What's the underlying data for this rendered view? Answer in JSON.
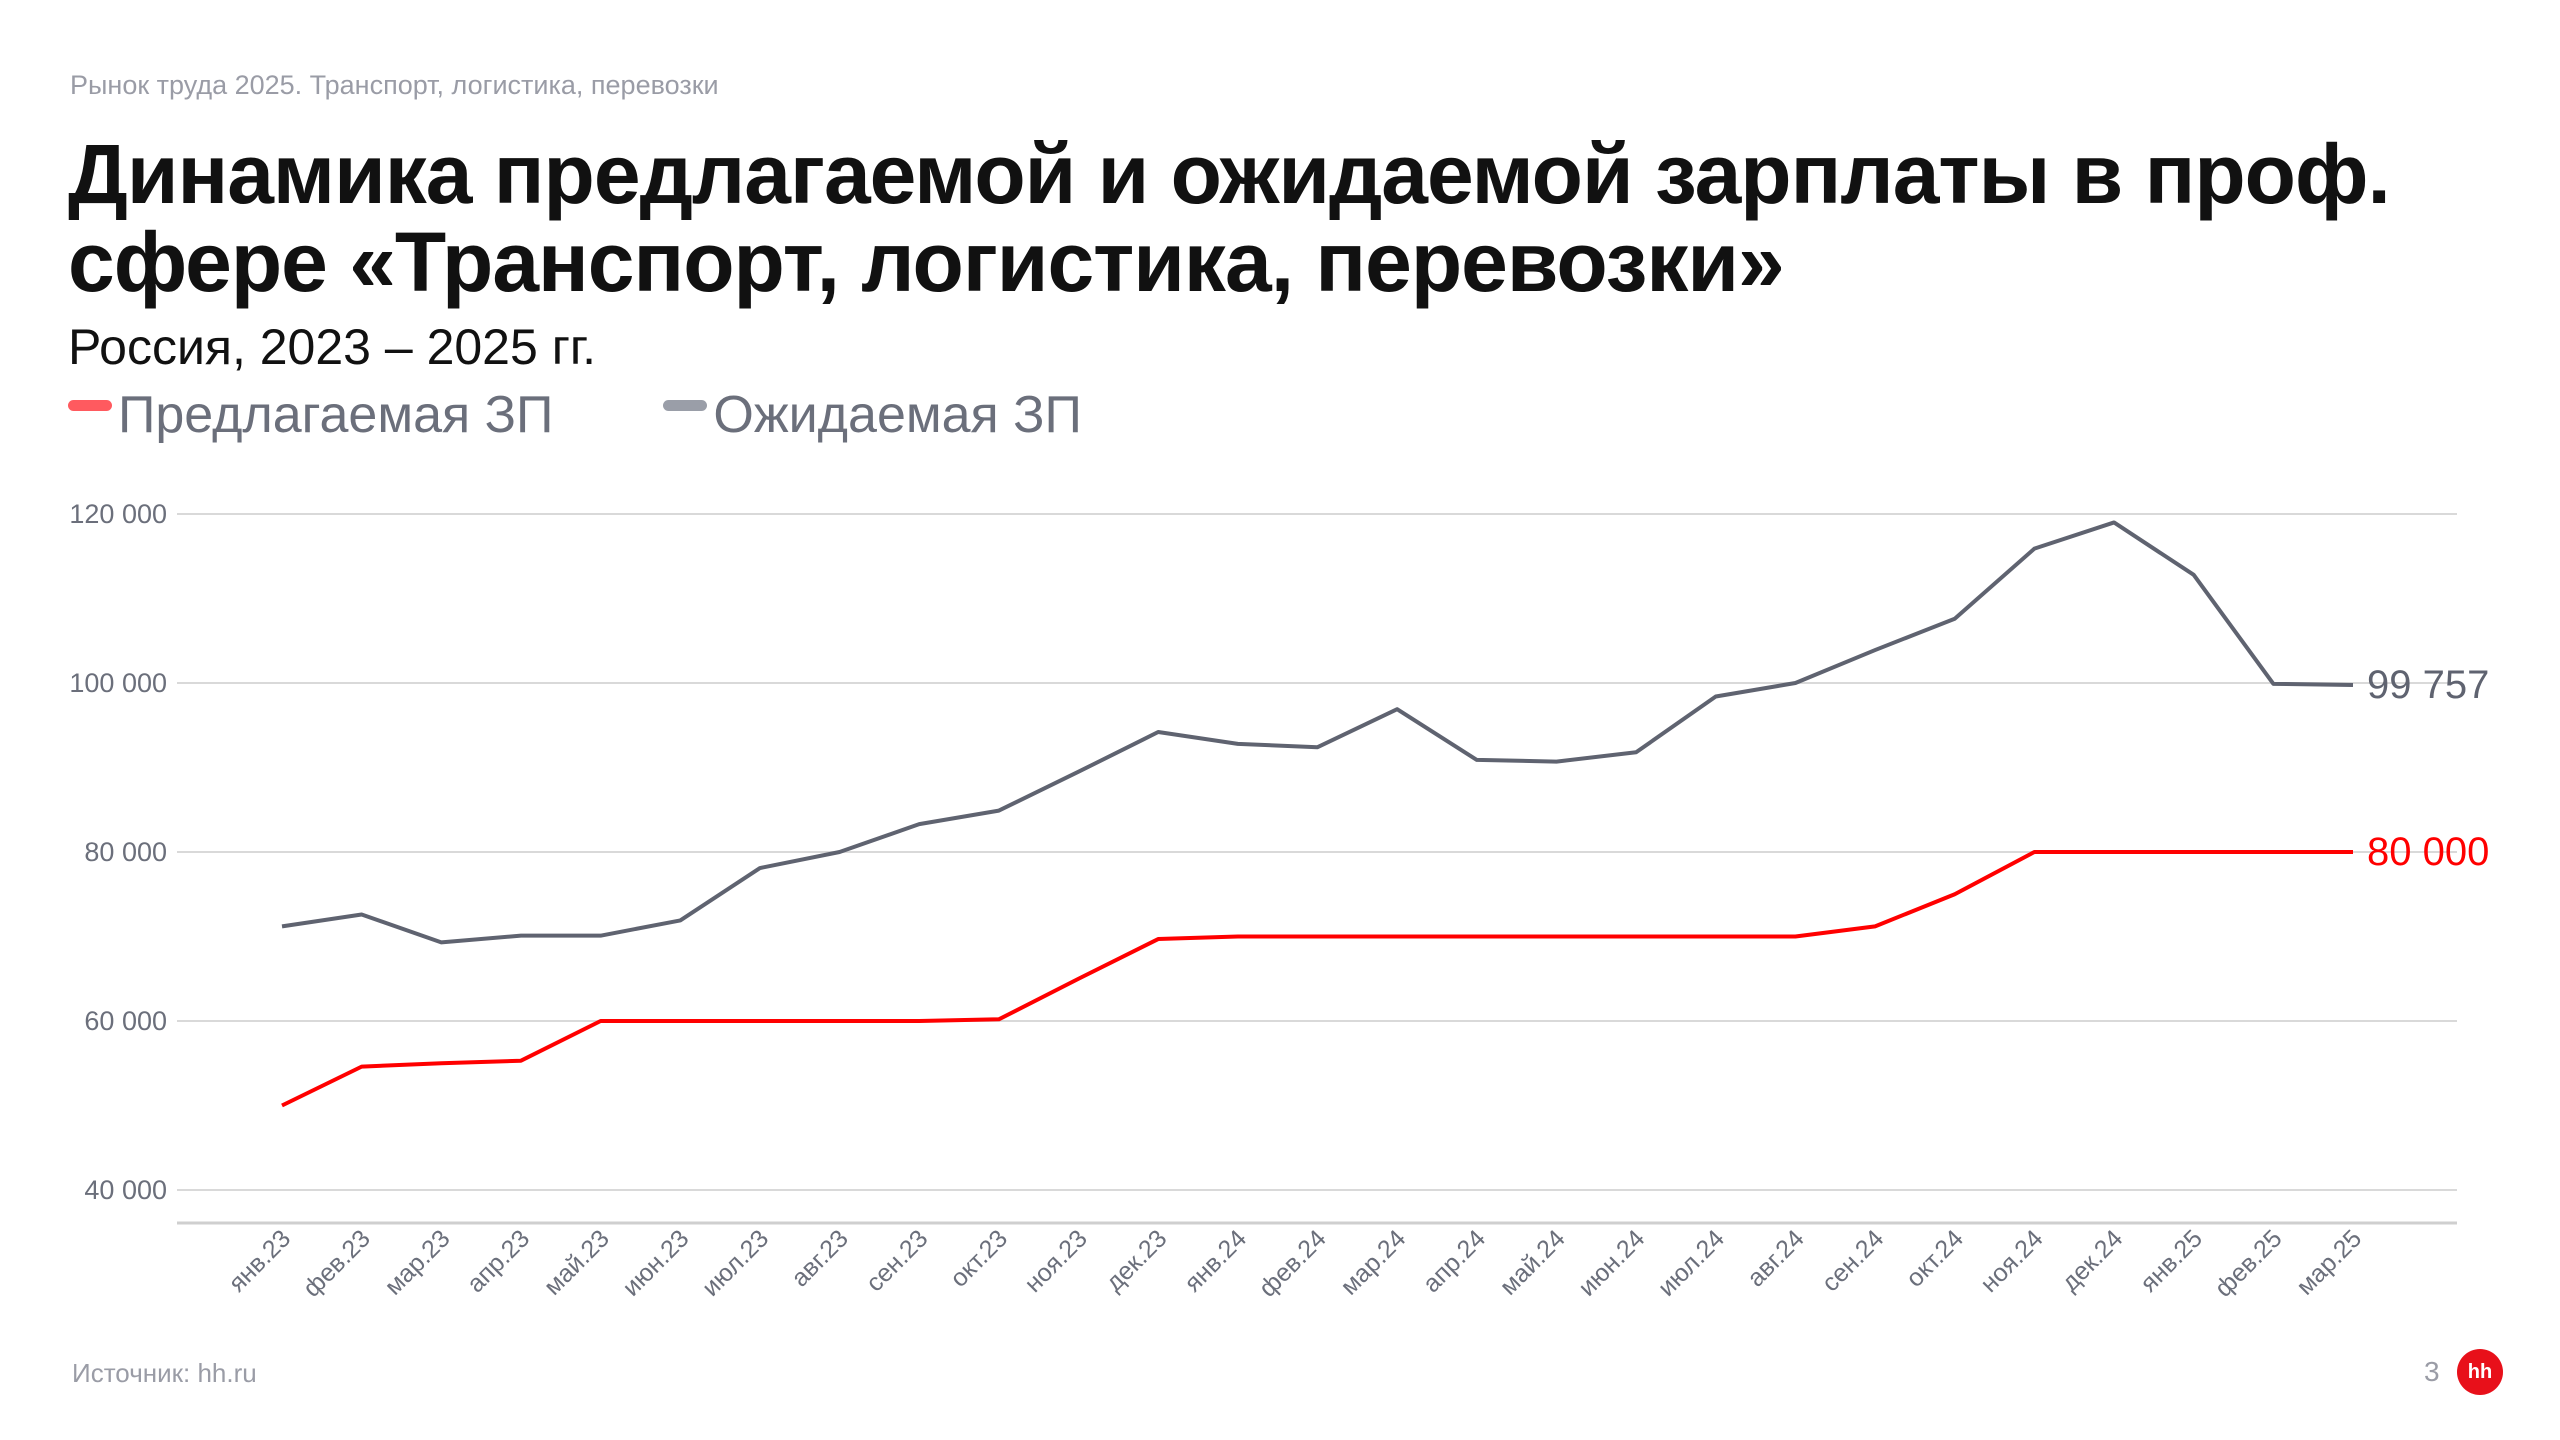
{
  "header": {
    "kicker": "Рынок труда 2025.  Транспорт, логистика, перевозки",
    "title": "Динамика предлагаемой и ожидаемой зарплаты в проф. сфере «Транспорт, логистика, перевозки»",
    "subtitle": "Россия, 2023 – 2025 гг."
  },
  "footer": {
    "source": "Источник: hh.ru",
    "page_number": "3",
    "logo_text": "hh"
  },
  "colors": {
    "offered": "#ff0000",
    "expected": "#5f6370",
    "grid": "#d9d9d9"
  },
  "chart_data": {
    "type": "line",
    "title": "Динамика предлагаемой и ожидаемой зарплаты в проф. сфере «Транспорт, логистика, перевозки»",
    "subtitle": "Россия, 2023 – 2025 гг.",
    "legend_position": "top-left",
    "grid": true,
    "ylim": [
      40000,
      120000
    ],
    "yticks": [
      {
        "value": 40000,
        "label": "40 000"
      },
      {
        "value": 60000,
        "label": "60 000"
      },
      {
        "value": 80000,
        "label": "80 000"
      },
      {
        "value": 100000,
        "label": "100 000"
      },
      {
        "value": 120000,
        "label": "120 000"
      }
    ],
    "categories": [
      "янв.23",
      "фев.23",
      "мар.23",
      "апр.23",
      "май.23",
      "июн.23",
      "июл.23",
      "авг.23",
      "сен.23",
      "окт.23",
      "ноя.23",
      "дек.23",
      "янв.24",
      "фев.24",
      "мар.24",
      "апр.24",
      "май.24",
      "июн.24",
      "июл.24",
      "авг.24",
      "сен.24",
      "окт.24",
      "ноя.24",
      "дек.24",
      "янв.25",
      "фев.25",
      "мар.25"
    ],
    "series": [
      {
        "name": "Предлагаемая ЗП",
        "color": "#ff0000",
        "end_label": "80 000",
        "values": [
          50000,
          54600,
          55000,
          55300,
          60000,
          60000,
          60000,
          60000,
          60000,
          60200,
          65000,
          69700,
          70000,
          70000,
          70000,
          70000,
          70000,
          70000,
          70000,
          70000,
          71200,
          75000,
          80000,
          80000,
          80000,
          80000,
          80000
        ]
      },
      {
        "name": "Ожидаемая ЗП",
        "color": "#5f6370",
        "end_label": "99 757",
        "values": [
          71200,
          72600,
          69300,
          70100,
          70100,
          71900,
          78100,
          80000,
          83300,
          84900,
          89500,
          94200,
          92800,
          92400,
          96900,
          90900,
          90700,
          91800,
          98400,
          100000,
          103900,
          107600,
          115900,
          119000,
          112800,
          99900,
          99757
        ]
      }
    ]
  }
}
